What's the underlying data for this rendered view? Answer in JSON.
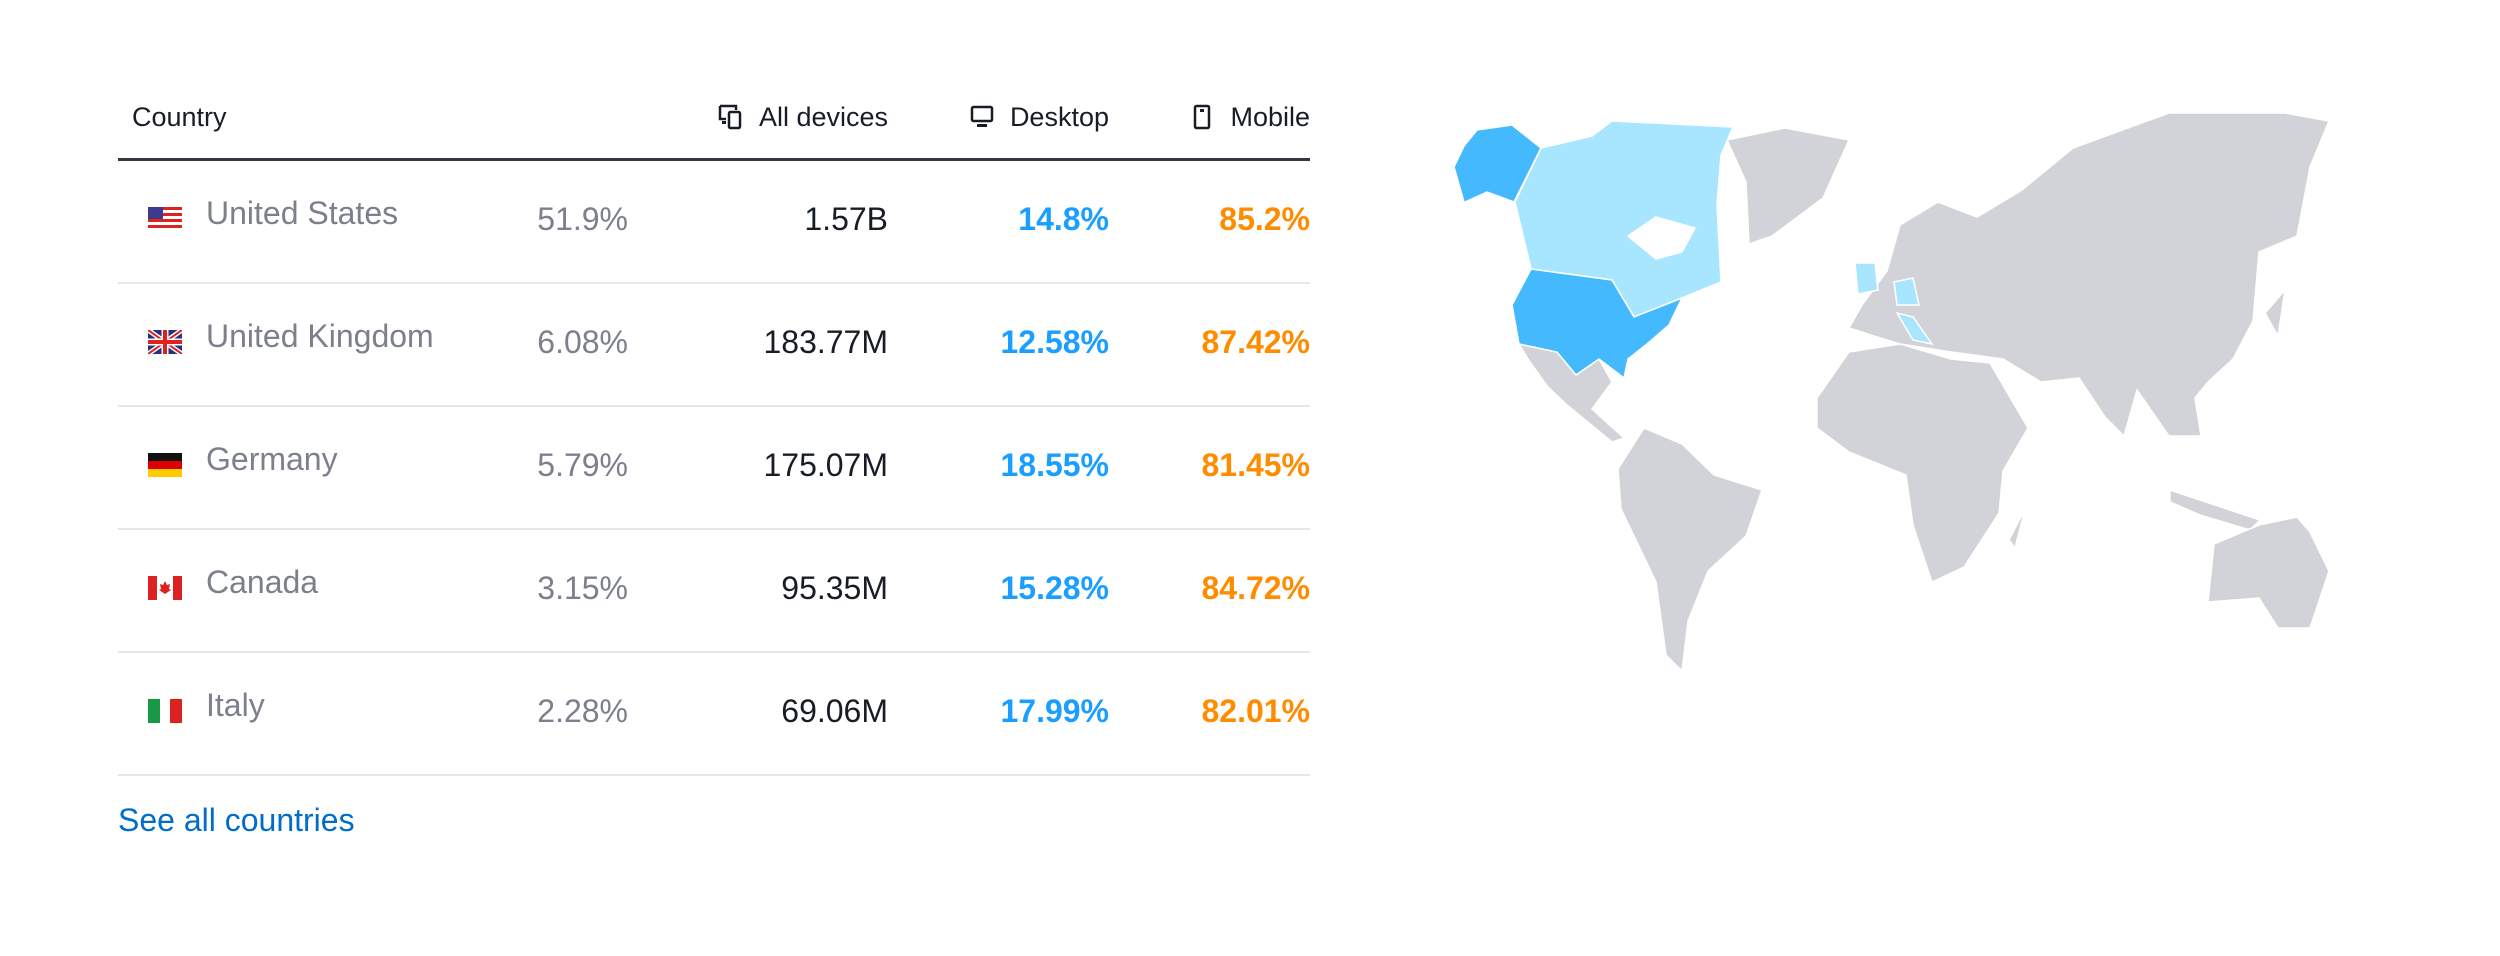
{
  "table": {
    "headers": {
      "country": "Country",
      "all_devices": "All devices",
      "desktop": "Desktop",
      "mobile": "Mobile"
    },
    "rows": [
      {
        "country": "United States",
        "flag": "us-flag-icon",
        "share": "51.9%",
        "all_devices": "1.57B",
        "desktop": "14.8%",
        "mobile": "85.2%"
      },
      {
        "country": "United Kingdom",
        "flag": "uk-flag-icon",
        "share": "6.08%",
        "all_devices": "183.77M",
        "desktop": "12.58%",
        "mobile": "87.42%"
      },
      {
        "country": "Germany",
        "flag": "de-flag-icon",
        "share": "5.79%",
        "all_devices": "175.07M",
        "desktop": "18.55%",
        "mobile": "81.45%"
      },
      {
        "country": "Canada",
        "flag": "ca-flag-icon",
        "share": "3.15%",
        "all_devices": "95.35M",
        "desktop": "15.28%",
        "mobile": "84.72%"
      },
      {
        "country": "Italy",
        "flag": "it-flag-icon",
        "share": "2.28%",
        "all_devices": "69.06M",
        "desktop": "17.99%",
        "mobile": "82.01%"
      }
    ]
  },
  "see_all_link": "See all countries",
  "colors": {
    "desktop": "#1a9eff",
    "mobile": "#ff8c00",
    "link": "#006dca",
    "map_top": "#45b9fd",
    "map_highlight": "#a8e6ff",
    "map_base": "#d1d3d8"
  }
}
